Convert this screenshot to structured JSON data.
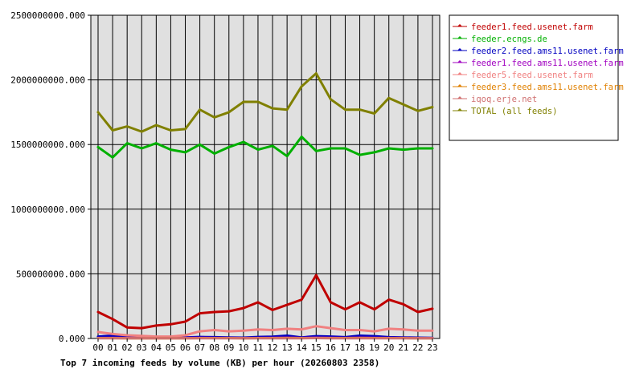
{
  "chart_data": {
    "type": "line",
    "title": "Top 7 incoming feeds by volume (KB) per hour (20260803 2358)",
    "xlabel": "",
    "ylabel": "",
    "ylim": [
      0,
      2500000000
    ],
    "yticks": [
      0,
      500000000,
      1000000000,
      1500000000,
      2000000000,
      2500000000
    ],
    "ytick_labels": [
      "0.000",
      "500000000.000",
      "1000000000.000",
      "1500000000.000",
      "2000000000.000",
      "2500000000.000"
    ],
    "grid": true,
    "legend_position": "right",
    "x": [
      "00",
      "01",
      "02",
      "03",
      "04",
      "05",
      "06",
      "07",
      "08",
      "09",
      "10",
      "11",
      "12",
      "13",
      "14",
      "15",
      "16",
      "17",
      "18",
      "19",
      "20",
      "21",
      "22",
      "23"
    ],
    "series": [
      {
        "name": "feeder1.feed.usenet.farm",
        "color": "#c00000",
        "values": [
          205000000,
          150000000,
          85000000,
          80000000,
          100000000,
          110000000,
          130000000,
          195000000,
          205000000,
          210000000,
          235000000,
          280000000,
          220000000,
          260000000,
          300000000,
          490000000,
          280000000,
          225000000,
          280000000,
          225000000,
          300000000,
          265000000,
          205000000,
          230000000
        ]
      },
      {
        "name": "feeder.ecngs.de",
        "color": "#00b000",
        "values": [
          1480000000,
          1400000000,
          1510000000,
          1470000000,
          1510000000,
          1460000000,
          1440000000,
          1500000000,
          1430000000,
          1480000000,
          1520000000,
          1460000000,
          1490000000,
          1410000000,
          1560000000,
          1450000000,
          1470000000,
          1470000000,
          1420000000,
          1440000000,
          1470000000,
          1460000000,
          1470000000,
          1470000000
        ]
      },
      {
        "name": "feeder2.feed.ams11.usenet.farm",
        "color": "#0000c0",
        "values": [
          15000000,
          22000000,
          18000000,
          10000000,
          6000000,
          5000000,
          8000000,
          12000000,
          10000000,
          8000000,
          6000000,
          12000000,
          14000000,
          22000000,
          8000000,
          18000000,
          15000000,
          10000000,
          22000000,
          18000000,
          10000000,
          8000000,
          6000000,
          5000000
        ]
      },
      {
        "name": "feeder1.feed.ams11.usenet.farm",
        "color": "#a000c0",
        "values": [
          4000000,
          5000000,
          4000000,
          3000000,
          3000000,
          3000000,
          4000000,
          5000000,
          4000000,
          4000000,
          3000000,
          4000000,
          5000000,
          6000000,
          4000000,
          6000000,
          5000000,
          4000000,
          6000000,
          5000000,
          4000000,
          4000000,
          3000000,
          3000000
        ]
      },
      {
        "name": "feeder5.feed.usenet.farm",
        "color": "#f08080",
        "values": [
          50000000,
          35000000,
          25000000,
          20000000,
          15000000,
          15000000,
          25000000,
          55000000,
          65000000,
          55000000,
          60000000,
          70000000,
          65000000,
          75000000,
          70000000,
          95000000,
          80000000,
          65000000,
          65000000,
          55000000,
          75000000,
          70000000,
          60000000,
          60000000
        ]
      },
      {
        "name": "feeder3.feed.ams11.usenet.farm",
        "color": "#e08000",
        "values": [
          3000000,
          3000000,
          2000000,
          2000000,
          2000000,
          2000000,
          2000000,
          3000000,
          3000000,
          3000000,
          2000000,
          3000000,
          3000000,
          4000000,
          3000000,
          4000000,
          3000000,
          3000000,
          4000000,
          3000000,
          3000000,
          3000000,
          2000000,
          2000000
        ]
      },
      {
        "name": "iqoq.erje.net",
        "color": "#d07070",
        "values": [
          2000000,
          2000000,
          2000000,
          1000000,
          1000000,
          1000000,
          1000000,
          2000000,
          2000000,
          2000000,
          1000000,
          2000000,
          2000000,
          2000000,
          2000000,
          3000000,
          2000000,
          2000000,
          2000000,
          2000000,
          2000000,
          2000000,
          1000000,
          1000000
        ]
      },
      {
        "name": "TOTAL (all feeds)",
        "color": "#808000",
        "values": [
          1750000000,
          1610000000,
          1640000000,
          1600000000,
          1650000000,
          1610000000,
          1620000000,
          1770000000,
          1710000000,
          1750000000,
          1830000000,
          1830000000,
          1780000000,
          1770000000,
          1950000000,
          2050000000,
          1850000000,
          1770000000,
          1770000000,
          1740000000,
          1860000000,
          1810000000,
          1760000000,
          1790000000
        ]
      }
    ]
  }
}
